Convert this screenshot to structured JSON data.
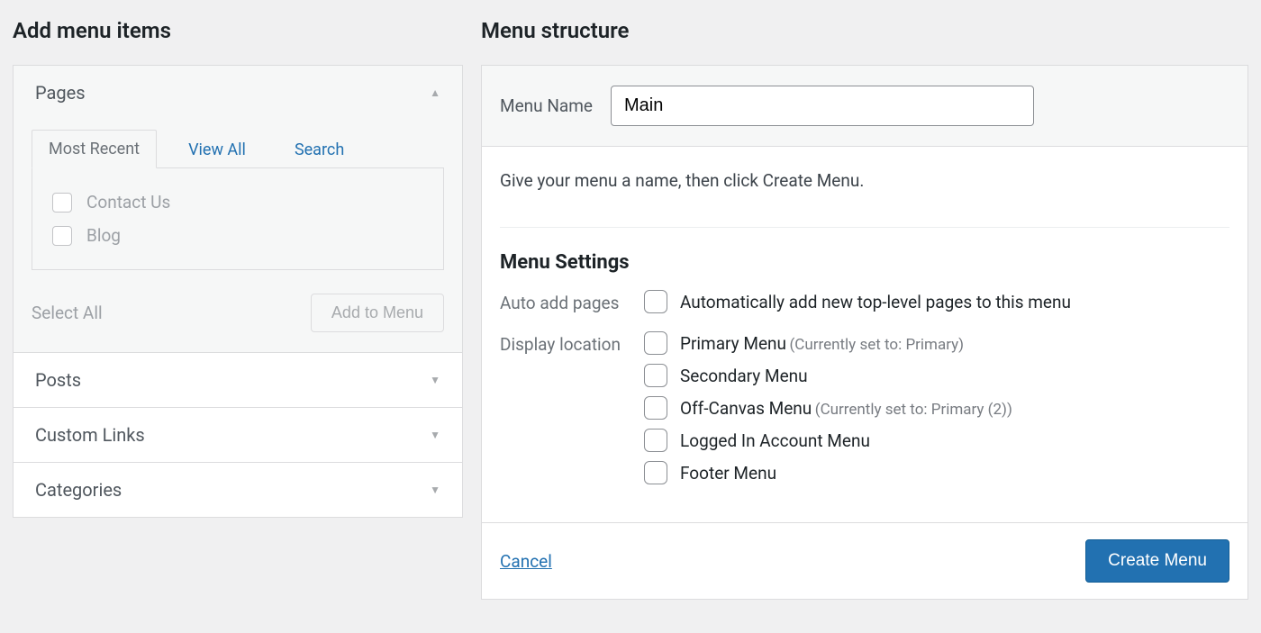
{
  "colors": {
    "page_bg": "#f0f0f1",
    "panel_border": "#dcdcde",
    "panel_header_bg": "#f6f7f7",
    "link_color": "#2271b1",
    "primary_btn_bg": "#2271b1",
    "text_main": "#1d2327",
    "text_muted": "#50575e",
    "text_disabled": "#a7aaad"
  },
  "left": {
    "heading": "Add menu items",
    "sections": [
      {
        "title": "Pages",
        "expanded": true,
        "tabs": [
          "Most Recent",
          "View All",
          "Search"
        ],
        "active_tab": 0,
        "items": [
          "Contact Us",
          "Blog"
        ],
        "select_all": "Select All",
        "add_btn": "Add to Menu"
      },
      {
        "title": "Posts",
        "expanded": false
      },
      {
        "title": "Custom Links",
        "expanded": false
      },
      {
        "title": "Categories",
        "expanded": false
      }
    ]
  },
  "right": {
    "heading": "Menu structure",
    "name_label": "Menu Name",
    "name_value": "Main",
    "intro": "Give your menu a name, then click Create Menu.",
    "settings_title": "Menu Settings",
    "auto_add_label": "Auto add pages",
    "auto_add_option": "Automatically add new top-level pages to this menu",
    "display_loc_label": "Display location",
    "locations": [
      {
        "label": "Primary Menu",
        "note": "(Currently set to: Primary)"
      },
      {
        "label": "Secondary Menu",
        "note": ""
      },
      {
        "label": "Off-Canvas Menu",
        "note": "(Currently set to: Primary (2))"
      },
      {
        "label": "Logged In Account Menu",
        "note": ""
      },
      {
        "label": "Footer Menu",
        "note": ""
      }
    ],
    "cancel": "Cancel",
    "create_btn": "Create Menu"
  }
}
